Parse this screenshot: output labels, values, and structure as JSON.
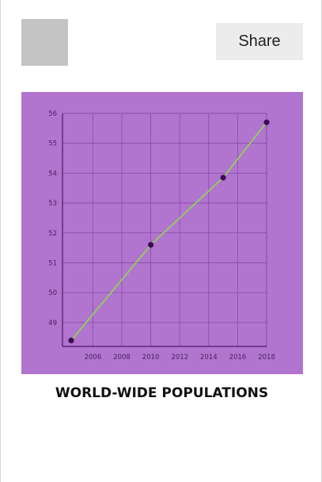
{
  "share_label": "Share",
  "colors": {
    "panel_bg": "#b175cf",
    "grid": "#8a49a8",
    "axis": "#5b2478",
    "line": "#94c961",
    "marker": "#3d0b52"
  },
  "chart_data": {
    "type": "line",
    "title": "WORLD-WIDE POPULATIONS",
    "xlabel": "",
    "ylabel": "",
    "x_ticks": [
      2006,
      2008,
      2010,
      2012,
      2014,
      2016,
      2018
    ],
    "y_ticks": [
      49,
      50,
      51,
      52,
      53,
      54,
      55,
      56
    ],
    "xlim": [
      2003.9,
      2018
    ],
    "ylim": [
      48.2,
      56
    ],
    "grid": true,
    "x": [
      2004.5,
      2010,
      2015,
      2018
    ],
    "y": [
      48.4,
      51.6,
      53.85,
      55.7
    ]
  }
}
